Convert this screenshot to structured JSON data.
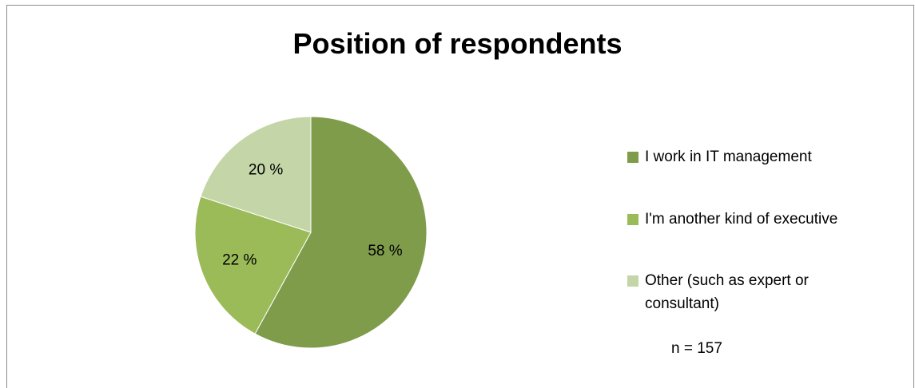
{
  "chart_data": {
    "type": "pie",
    "title": "Position of respondents",
    "slices": [
      {
        "label": "I work in IT management",
        "value": 58,
        "display": "58 %",
        "color": "#7f9c4b"
      },
      {
        "label": "I'm another kind of executive",
        "value": 22,
        "display": "22 %",
        "color": "#9bbb59"
      },
      {
        "label": "Other (such as expert or consultant)",
        "value": 20,
        "display": "20 %",
        "color": "#c4d6a7"
      }
    ],
    "start_direction": "top, clockwise",
    "legend_position": "right",
    "note": "n = 157"
  }
}
